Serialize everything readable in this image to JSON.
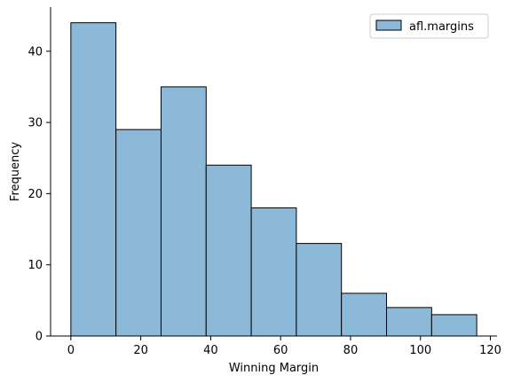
{
  "chart_data": {
    "type": "bar",
    "histogram": true,
    "bin_edges": [
      0,
      12.9,
      25.8,
      38.7,
      51.6,
      64.5,
      77.4,
      90.3,
      103.2,
      116.1
    ],
    "values": [
      44,
      29,
      35,
      24,
      18,
      13,
      6,
      4,
      3
    ],
    "series": [
      {
        "name": "afl.margins",
        "values": [
          44,
          29,
          35,
          24,
          18,
          13,
          6,
          4,
          3
        ]
      }
    ],
    "xlabel": "Winning Margin",
    "ylabel": "Frequency",
    "xlim": [
      -5.8,
      121.9
    ],
    "ylim": [
      0,
      46.2
    ],
    "xticks": [
      0,
      20,
      40,
      60,
      80,
      100,
      120
    ],
    "yticks": [
      0,
      10,
      20,
      30,
      40
    ],
    "legend_position": "top-right",
    "grid": false,
    "bar_color": "#8db9d9",
    "edge_color": "#000000"
  }
}
